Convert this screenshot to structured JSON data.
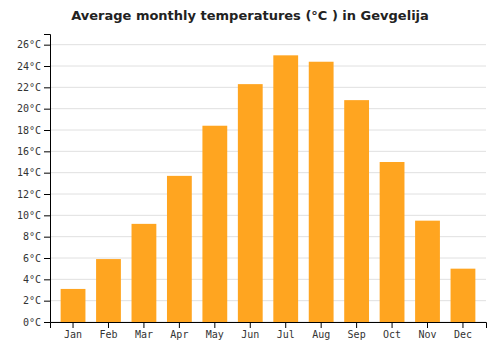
{
  "chart_data": {
    "type": "bar",
    "title": "Average monthly temperatures (°C ) in Gevgelija",
    "categories": [
      "Jan",
      "Feb",
      "Mar",
      "Apr",
      "May",
      "Jun",
      "Jul",
      "Aug",
      "Sep",
      "Oct",
      "Nov",
      "Dec"
    ],
    "values": [
      3.1,
      5.9,
      9.2,
      13.7,
      18.4,
      22.3,
      25.0,
      24.4,
      20.8,
      15.0,
      9.5,
      5.0
    ],
    "color": "#FFA520",
    "ylim": [
      0,
      27
    ],
    "yticks": [
      {
        "value": 0,
        "label": "0°C"
      },
      {
        "value": 2,
        "label": "2°C"
      },
      {
        "value": 4,
        "label": "4°C"
      },
      {
        "value": 6,
        "label": "6°C"
      },
      {
        "value": 8,
        "label": "8°C"
      },
      {
        "value": 10,
        "label": "10°C"
      },
      {
        "value": 12,
        "label": "12°C"
      },
      {
        "value": 14,
        "label": "14°C"
      },
      {
        "value": 16,
        "label": "16°C"
      },
      {
        "value": 18,
        "label": "18°C"
      },
      {
        "value": 20,
        "label": "20°C"
      },
      {
        "value": 22,
        "label": "22°C"
      },
      {
        "value": 24,
        "label": "24°C"
      },
      {
        "value": 26,
        "label": "26°C"
      }
    ],
    "grid": true
  }
}
